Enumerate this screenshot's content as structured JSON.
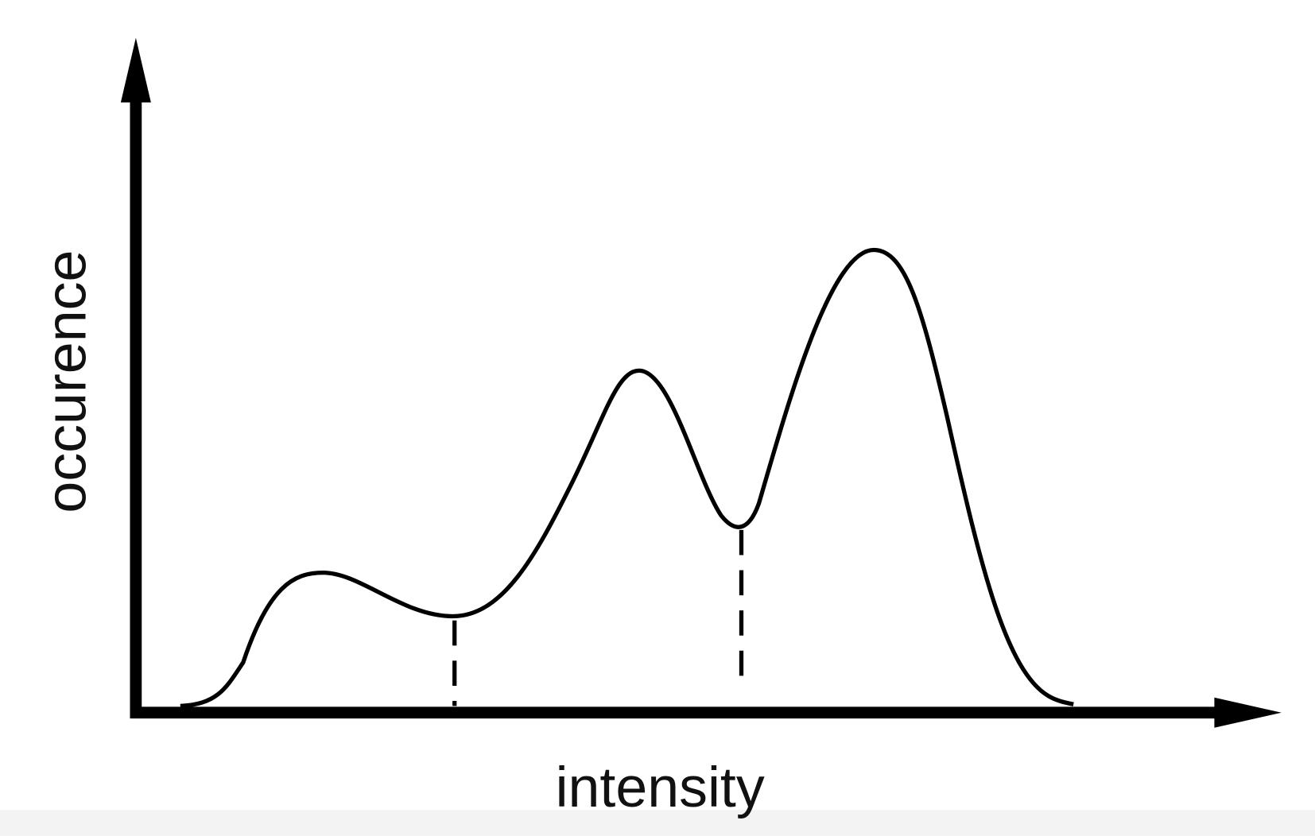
{
  "x_label": "intensity",
  "y_label": "occurence"
}
